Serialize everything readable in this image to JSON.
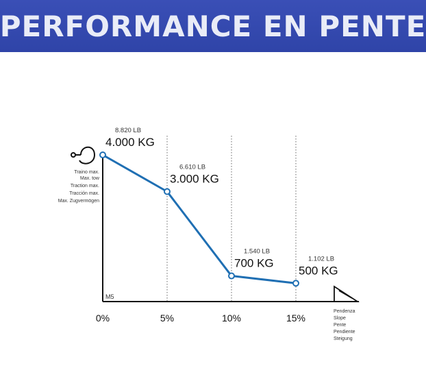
{
  "banner": {
    "title": "PERFORMANCE EN PENTE"
  },
  "chart_data": {
    "type": "line",
    "x": [
      0,
      5,
      10,
      15
    ],
    "x_tick_labels": [
      "0%",
      "5%",
      "10%",
      "15%"
    ],
    "values": [
      4000,
      3000,
      700,
      500
    ],
    "point_labels_lb": [
      "8.820 LB",
      "6.610 LB",
      "1.540 LB",
      "1.102 LB"
    ],
    "point_labels_kg": [
      "4.000 KG",
      "3.000 KG",
      "700 KG",
      "500 KG"
    ],
    "ylabel_lines": [
      "Traino max.",
      "Max. tow",
      "Traction max.",
      "Tracción max.",
      "Max. Zugvermögen"
    ],
    "xlabel_lines": [
      "Pendenza",
      "Slope",
      "Pente",
      "Pendiente",
      "Steigung"
    ],
    "corner_label": "M5",
    "xlim": [
      0,
      15
    ],
    "ylim": [
      0,
      4000
    ],
    "grid": "vertical dotted at 5%, 10%, 15%",
    "line_color": "#1f6fb3"
  }
}
